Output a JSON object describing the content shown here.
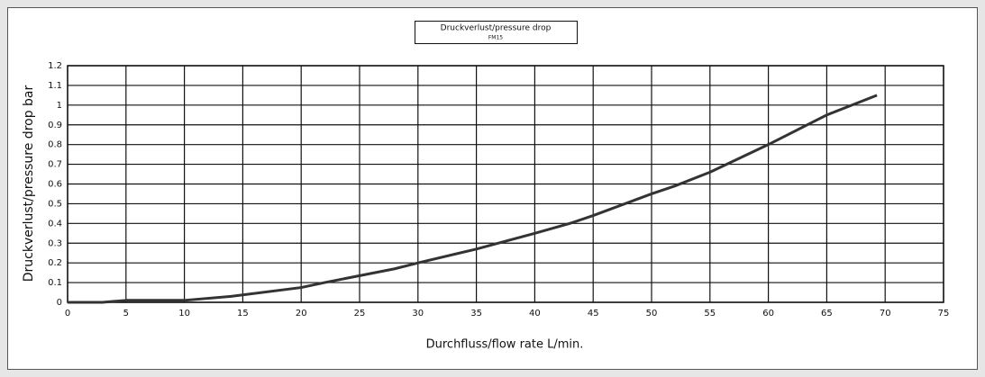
{
  "chart_data": {
    "type": "line",
    "title": "Druckverlust/pressure drop",
    "subtitle": "FM15",
    "x_label": "Durchfluss/flow rate L/min.",
    "y_label": "Druckverlust/pressure drop bar",
    "x": [
      0,
      3,
      5,
      10,
      14,
      20,
      22,
      28,
      30,
      35,
      40,
      43,
      45,
      50,
      52,
      55,
      60,
      65,
      69.3
    ],
    "series": [
      {
        "color": "#333333",
        "values": [
          0,
          0,
          0.01,
          0.01,
          0.03,
          0.075,
          0.1,
          0.17,
          0.2,
          0.27,
          0.35,
          0.4,
          0.44,
          0.55,
          0.59,
          0.66,
          0.8,
          0.95,
          1.05
        ]
      }
    ],
    "xlim": [
      0,
      75
    ],
    "xticks": [
      0,
      5,
      10,
      15,
      20,
      25,
      30,
      35,
      40,
      45,
      50,
      55,
      60,
      65,
      70,
      75
    ],
    "ylim": [
      0,
      1.2
    ],
    "yticks": [
      0,
      0.1,
      0.2,
      0.3,
      0.4,
      0.5,
      0.6,
      0.7,
      0.8,
      0.9,
      1,
      1.1,
      1.2
    ],
    "grid": true
  }
}
